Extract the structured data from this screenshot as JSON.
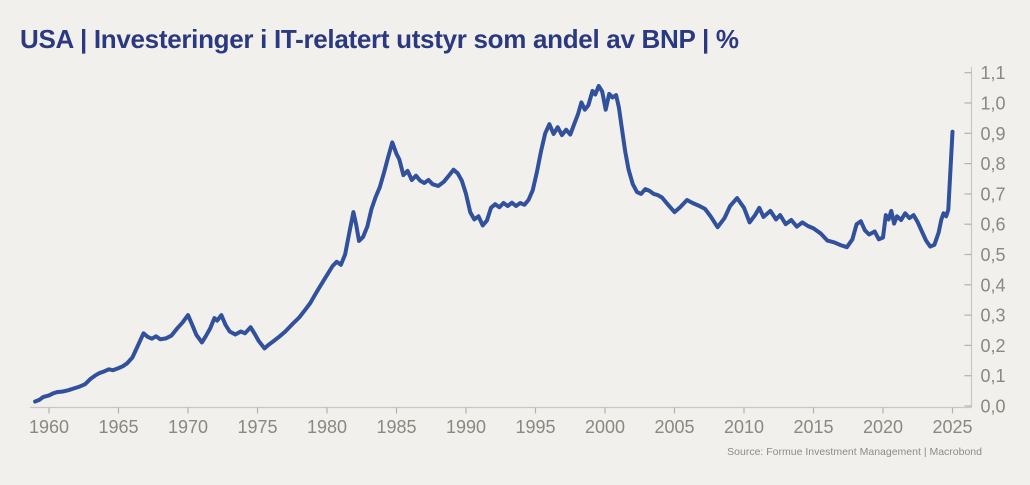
{
  "header": {
    "title": "USA | Investeringer i IT-relatert utstyr som andel av BNP | %"
  },
  "footer": {
    "source": "Source: Formue Investment Management | Macrobond"
  },
  "colors": {
    "background": "#f2f0ec",
    "line": "#31519c",
    "title": "#2b3a80",
    "axis": "#ccc8c1",
    "tick": "#b6b1aa",
    "tick_label": "#8b8781",
    "source_text": "#8f8b84"
  },
  "chart_data": {
    "type": "line",
    "title": "USA | Investeringer i IT-relatert utstyr som andel av BNP | %",
    "xlabel": "",
    "ylabel": "",
    "xlim": [
      1959,
      2026.4
    ],
    "ylim": [
      0.0,
      1.1
    ],
    "grid": false,
    "legend": false,
    "x_ticks": [
      1960,
      1965,
      1970,
      1975,
      1980,
      1985,
      1990,
      1995,
      2000,
      2005,
      2010,
      2015,
      2020,
      2025
    ],
    "x_tick_labels": [
      "1960",
      "1965",
      "1970",
      "1975",
      "1980",
      "1985",
      "1990",
      "1995",
      "2000",
      "2005",
      "2010",
      "2015",
      "2020",
      "2025"
    ],
    "y_ticks": [
      0.0,
      0.1,
      0.2,
      0.3,
      0.4,
      0.5,
      0.6,
      0.7,
      0.8,
      0.9,
      1.0,
      1.1
    ],
    "y_tick_labels": [
      "0,0",
      "0,1",
      "0,2",
      "0,3",
      "0,4",
      "0,5",
      "0,6",
      "0,7",
      "0,8",
      "0,9",
      "1,0",
      "1,1"
    ],
    "series": [
      {
        "points": [
          [
            1959.0,
            0.015
          ],
          [
            1959.3,
            0.02
          ],
          [
            1959.6,
            0.03
          ],
          [
            1960.0,
            0.035
          ],
          [
            1960.3,
            0.042
          ],
          [
            1960.6,
            0.046
          ],
          [
            1961.0,
            0.048
          ],
          [
            1961.4,
            0.052
          ],
          [
            1961.8,
            0.058
          ],
          [
            1962.2,
            0.064
          ],
          [
            1962.6,
            0.072
          ],
          [
            1963.0,
            0.09
          ],
          [
            1963.3,
            0.1
          ],
          [
            1963.6,
            0.108
          ],
          [
            1964.0,
            0.115
          ],
          [
            1964.3,
            0.121
          ],
          [
            1964.6,
            0.118
          ],
          [
            1965.0,
            0.125
          ],
          [
            1965.3,
            0.131
          ],
          [
            1965.6,
            0.14
          ],
          [
            1966.0,
            0.16
          ],
          [
            1966.4,
            0.2
          ],
          [
            1966.8,
            0.24
          ],
          [
            1967.1,
            0.228
          ],
          [
            1967.4,
            0.222
          ],
          [
            1967.7,
            0.23
          ],
          [
            1968.0,
            0.22
          ],
          [
            1968.4,
            0.223
          ],
          [
            1968.8,
            0.232
          ],
          [
            1969.2,
            0.255
          ],
          [
            1969.6,
            0.275
          ],
          [
            1970.0,
            0.3
          ],
          [
            1970.3,
            0.268
          ],
          [
            1970.6,
            0.235
          ],
          [
            1971.0,
            0.21
          ],
          [
            1971.3,
            0.232
          ],
          [
            1971.6,
            0.256
          ],
          [
            1971.9,
            0.29
          ],
          [
            1972.1,
            0.282
          ],
          [
            1972.4,
            0.3
          ],
          [
            1972.7,
            0.268
          ],
          [
            1973.0,
            0.246
          ],
          [
            1973.4,
            0.236
          ],
          [
            1973.8,
            0.246
          ],
          [
            1974.1,
            0.24
          ],
          [
            1974.5,
            0.26
          ],
          [
            1974.8,
            0.238
          ],
          [
            1975.1,
            0.214
          ],
          [
            1975.5,
            0.19
          ],
          [
            1975.8,
            0.202
          ],
          [
            1976.2,
            0.216
          ],
          [
            1976.6,
            0.23
          ],
          [
            1977.0,
            0.246
          ],
          [
            1977.5,
            0.27
          ],
          [
            1978.0,
            0.292
          ],
          [
            1978.4,
            0.316
          ],
          [
            1978.8,
            0.34
          ],
          [
            1979.2,
            0.372
          ],
          [
            1979.6,
            0.402
          ],
          [
            1980.0,
            0.432
          ],
          [
            1980.4,
            0.462
          ],
          [
            1980.7,
            0.476
          ],
          [
            1981.0,
            0.466
          ],
          [
            1981.3,
            0.5
          ],
          [
            1981.6,
            0.57
          ],
          [
            1981.9,
            0.64
          ],
          [
            1982.1,
            0.598
          ],
          [
            1982.3,
            0.545
          ],
          [
            1982.6,
            0.558
          ],
          [
            1982.9,
            0.592
          ],
          [
            1983.2,
            0.65
          ],
          [
            1983.5,
            0.69
          ],
          [
            1983.8,
            0.722
          ],
          [
            1984.1,
            0.77
          ],
          [
            1984.4,
            0.822
          ],
          [
            1984.7,
            0.87
          ],
          [
            1985.0,
            0.832
          ],
          [
            1985.2,
            0.814
          ],
          [
            1985.5,
            0.762
          ],
          [
            1985.8,
            0.776
          ],
          [
            1986.1,
            0.746
          ],
          [
            1986.4,
            0.76
          ],
          [
            1986.7,
            0.744
          ],
          [
            1987.0,
            0.736
          ],
          [
            1987.3,
            0.746
          ],
          [
            1987.6,
            0.732
          ],
          [
            1988.0,
            0.726
          ],
          [
            1988.4,
            0.74
          ],
          [
            1988.8,
            0.762
          ],
          [
            1989.1,
            0.78
          ],
          [
            1989.4,
            0.768
          ],
          [
            1989.7,
            0.744
          ],
          [
            1990.0,
            0.7
          ],
          [
            1990.3,
            0.64
          ],
          [
            1990.6,
            0.616
          ],
          [
            1990.9,
            0.626
          ],
          [
            1991.2,
            0.596
          ],
          [
            1991.5,
            0.612
          ],
          [
            1991.8,
            0.654
          ],
          [
            1992.1,
            0.666
          ],
          [
            1992.4,
            0.656
          ],
          [
            1992.7,
            0.67
          ],
          [
            1993.0,
            0.66
          ],
          [
            1993.3,
            0.671
          ],
          [
            1993.6,
            0.66
          ],
          [
            1993.9,
            0.67
          ],
          [
            1994.2,
            0.664
          ],
          [
            1994.5,
            0.68
          ],
          [
            1994.8,
            0.712
          ],
          [
            1995.1,
            0.772
          ],
          [
            1995.4,
            0.842
          ],
          [
            1995.7,
            0.9
          ],
          [
            1996.0,
            0.93
          ],
          [
            1996.3,
            0.898
          ],
          [
            1996.6,
            0.92
          ],
          [
            1996.9,
            0.894
          ],
          [
            1997.2,
            0.912
          ],
          [
            1997.5,
            0.896
          ],
          [
            1997.8,
            0.932
          ],
          [
            1998.05,
            0.962
          ],
          [
            1998.3,
            1.002
          ],
          [
            1998.55,
            0.978
          ],
          [
            1998.8,
            0.992
          ],
          [
            1999.1,
            1.04
          ],
          [
            1999.3,
            1.028
          ],
          [
            1999.55,
            1.056
          ],
          [
            1999.8,
            1.038
          ],
          [
            2000.05,
            0.978
          ],
          [
            2000.3,
            1.03
          ],
          [
            2000.55,
            1.018
          ],
          [
            2000.8,
            1.026
          ],
          [
            2001.0,
            0.985
          ],
          [
            2001.2,
            0.92
          ],
          [
            2001.45,
            0.84
          ],
          [
            2001.7,
            0.78
          ],
          [
            2002.0,
            0.732
          ],
          [
            2002.3,
            0.706
          ],
          [
            2002.6,
            0.7
          ],
          [
            2002.9,
            0.716
          ],
          [
            2003.2,
            0.71
          ],
          [
            2003.5,
            0.7
          ],
          [
            2003.8,
            0.696
          ],
          [
            2004.1,
            0.688
          ],
          [
            2004.5,
            0.666
          ],
          [
            2005.0,
            0.64
          ],
          [
            2005.4,
            0.656
          ],
          [
            2005.9,
            0.68
          ],
          [
            2006.3,
            0.67
          ],
          [
            2006.8,
            0.66
          ],
          [
            2007.2,
            0.65
          ],
          [
            2007.6,
            0.626
          ],
          [
            2008.1,
            0.59
          ],
          [
            2008.6,
            0.62
          ],
          [
            2009.0,
            0.66
          ],
          [
            2009.5,
            0.686
          ],
          [
            2010.0,
            0.654
          ],
          [
            2010.4,
            0.606
          ],
          [
            2010.8,
            0.63
          ],
          [
            2011.1,
            0.654
          ],
          [
            2011.4,
            0.624
          ],
          [
            2011.9,
            0.644
          ],
          [
            2012.3,
            0.616
          ],
          [
            2012.6,
            0.63
          ],
          [
            2013.0,
            0.6
          ],
          [
            2013.4,
            0.614
          ],
          [
            2013.8,
            0.592
          ],
          [
            2014.2,
            0.606
          ],
          [
            2014.6,
            0.594
          ],
          [
            2015.0,
            0.586
          ],
          [
            2015.5,
            0.57
          ],
          [
            2016.0,
            0.546
          ],
          [
            2016.5,
            0.54
          ],
          [
            2017.0,
            0.53
          ],
          [
            2017.4,
            0.524
          ],
          [
            2017.8,
            0.55
          ],
          [
            2018.1,
            0.6
          ],
          [
            2018.4,
            0.61
          ],
          [
            2018.7,
            0.58
          ],
          [
            2019.0,
            0.566
          ],
          [
            2019.4,
            0.576
          ],
          [
            2019.7,
            0.55
          ],
          [
            2020.0,
            0.556
          ],
          [
            2020.2,
            0.63
          ],
          [
            2020.4,
            0.616
          ],
          [
            2020.6,
            0.644
          ],
          [
            2020.8,
            0.602
          ],
          [
            2021.0,
            0.626
          ],
          [
            2021.3,
            0.614
          ],
          [
            2021.6,
            0.636
          ],
          [
            2021.9,
            0.62
          ],
          [
            2022.2,
            0.63
          ],
          [
            2022.5,
            0.606
          ],
          [
            2022.8,
            0.576
          ],
          [
            2023.1,
            0.546
          ],
          [
            2023.4,
            0.526
          ],
          [
            2023.7,
            0.532
          ],
          [
            2024.0,
            0.572
          ],
          [
            2024.2,
            0.616
          ],
          [
            2024.35,
            0.636
          ],
          [
            2024.55,
            0.626
          ],
          [
            2024.7,
            0.648
          ],
          [
            2025.0,
            0.905
          ]
        ]
      }
    ]
  }
}
